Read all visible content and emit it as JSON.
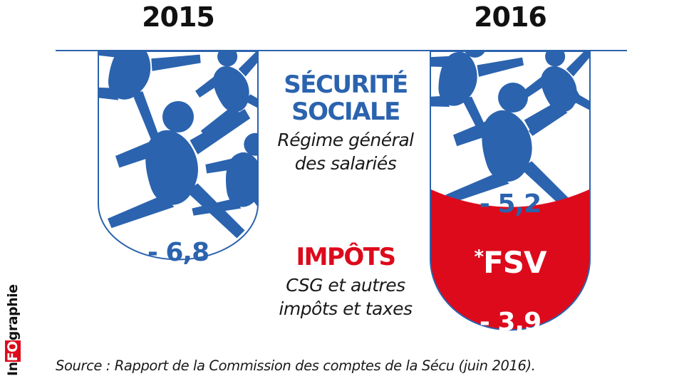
{
  "chart_data": {
    "type": "bar",
    "categories": [
      "2015",
      "2016"
    ],
    "series": [
      {
        "name": "SÉCURITÉ SOCIALE",
        "values": [
          6.8,
          5.2
        ],
        "labels": [
          "- 6,8",
          "- 5,2"
        ]
      },
      {
        "name": "IMPÔTS",
        "values": [
          0,
          3.9
        ],
        "labels": [
          "",
          "- 3,9"
        ]
      }
    ],
    "stack_note": "*FSV",
    "colors": {
      "securite_sociale": "#2b63ae",
      "impots": "#dd0a1c",
      "outline": "#2b63ae"
    },
    "legend": {
      "securite": {
        "title_1": "SÉCURITÉ",
        "title_2": "SOCIALE",
        "sub_1": "Régime général",
        "sub_2": "des salariés"
      },
      "impots": {
        "title": "IMPÔTS",
        "sub_1": "CSG et autres",
        "sub_2": "impôts et taxes"
      }
    },
    "source": "Source : Rapport de la Commission des comptes de la Sécu (juin 2016).",
    "logo": {
      "part1": "In",
      "part2": "FO",
      "part3": "graphie"
    }
  }
}
